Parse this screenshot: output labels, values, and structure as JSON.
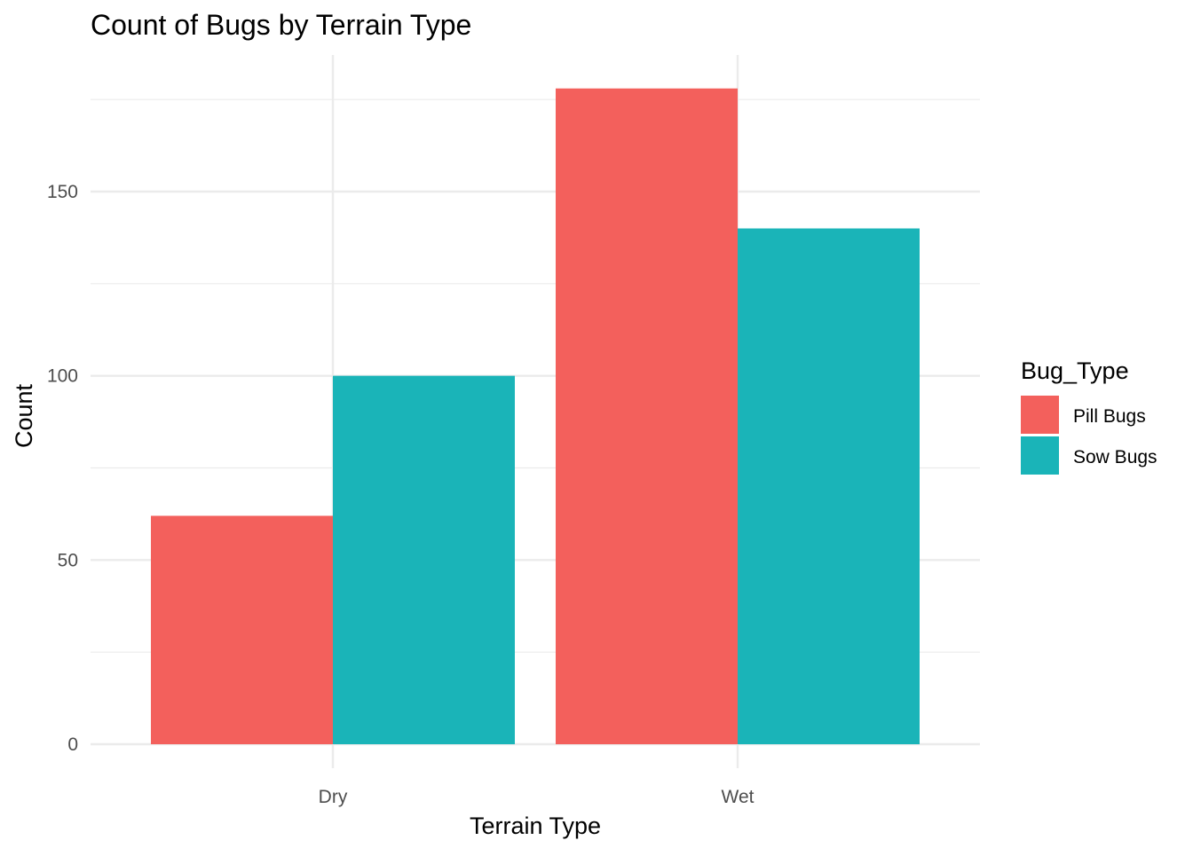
{
  "chart_data": {
    "type": "bar",
    "title": "Count of Bugs by Terrain Type",
    "xlabel": "Terrain Type",
    "ylabel": "Count",
    "categories": [
      "Dry",
      "Wet"
    ],
    "series": [
      {
        "name": "Pill Bugs",
        "values": [
          62,
          178
        ],
        "color": "#F3605C"
      },
      {
        "name": "Sow Bugs",
        "values": [
          100,
          140
        ],
        "color": "#1AB4B8"
      }
    ],
    "ylim": [
      0,
      185
    ],
    "yticks": [
      0,
      50,
      100,
      150
    ],
    "yminor": [
      25,
      75,
      125,
      175
    ],
    "grid": true,
    "legend": {
      "title": "Bug_Type",
      "position": "right"
    }
  }
}
